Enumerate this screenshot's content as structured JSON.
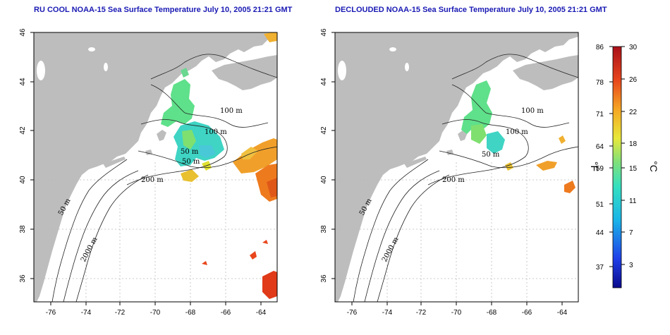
{
  "maps": [
    {
      "id": "left",
      "title": "RU COOL NOAA-15 Sea Surface Temperature July 10, 2005 21:21 GMT",
      "contour_labels": [
        "100 m",
        "100 m",
        "50 m",
        "50 m",
        "200 m",
        "50 m",
        "2000 m"
      ]
    },
    {
      "id": "right",
      "title": "DECLOUDED NOAA-15 Sea Surface Temperature July 10, 2005 21:21 GMT",
      "contour_labels": [
        "100 m",
        "100 m",
        "50 m",
        "200 m",
        "50 m",
        "2000 m"
      ]
    }
  ],
  "axes": {
    "x_ticks": [
      "-76",
      "-74",
      "-72",
      "-70",
      "-68",
      "-66",
      "-64"
    ],
    "y_ticks": [
      "46",
      "44",
      "42",
      "40",
      "38",
      "36"
    ]
  },
  "colorbar": {
    "fahrenheit_ticks": [
      "86",
      "78",
      "71",
      "64",
      "59",
      "51",
      "44",
      "37"
    ],
    "celsius_ticks": [
      "30",
      "26",
      "22",
      "18",
      "15",
      "11",
      "7",
      "3"
    ],
    "fahrenheit_unit": "°F",
    "celsius_unit": "°C",
    "range_celsius": [
      0,
      30
    ]
  },
  "colors": {
    "title": "#1a1ab4",
    "land": "#bdbdbd",
    "water": "#ffffff",
    "grid": "#bbbbbb"
  }
}
